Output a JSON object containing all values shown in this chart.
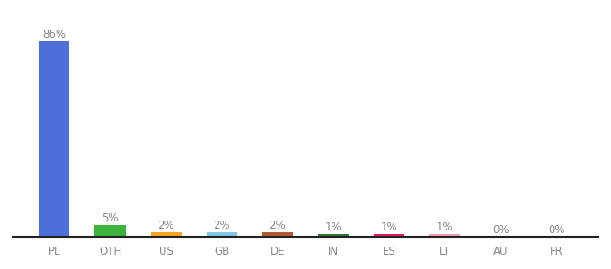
{
  "categories": [
    "PL",
    "OTH",
    "US",
    "GB",
    "DE",
    "IN",
    "ES",
    "LT",
    "AU",
    "FR"
  ],
  "values": [
    86,
    5,
    2,
    2,
    2,
    1,
    1,
    1,
    0,
    0
  ],
  "labels": [
    "86%",
    "5%",
    "2%",
    "2%",
    "2%",
    "1%",
    "1%",
    "1%",
    "0%",
    "0%"
  ],
  "bar_colors": [
    "#4e6fd9",
    "#3db33d",
    "#f5a623",
    "#7ec8e3",
    "#b05a2f",
    "#2d7a2d",
    "#e8185a",
    "#f4a0b0",
    "#cccccc",
    "#cccccc"
  ],
  "label_fontsize": 8.5,
  "tick_fontsize": 8.5,
  "background_color": "#ffffff",
  "ylim": [
    0,
    96
  ],
  "label_color": "#888888",
  "tick_color": "#888888",
  "bottom_line_color": "#222222"
}
